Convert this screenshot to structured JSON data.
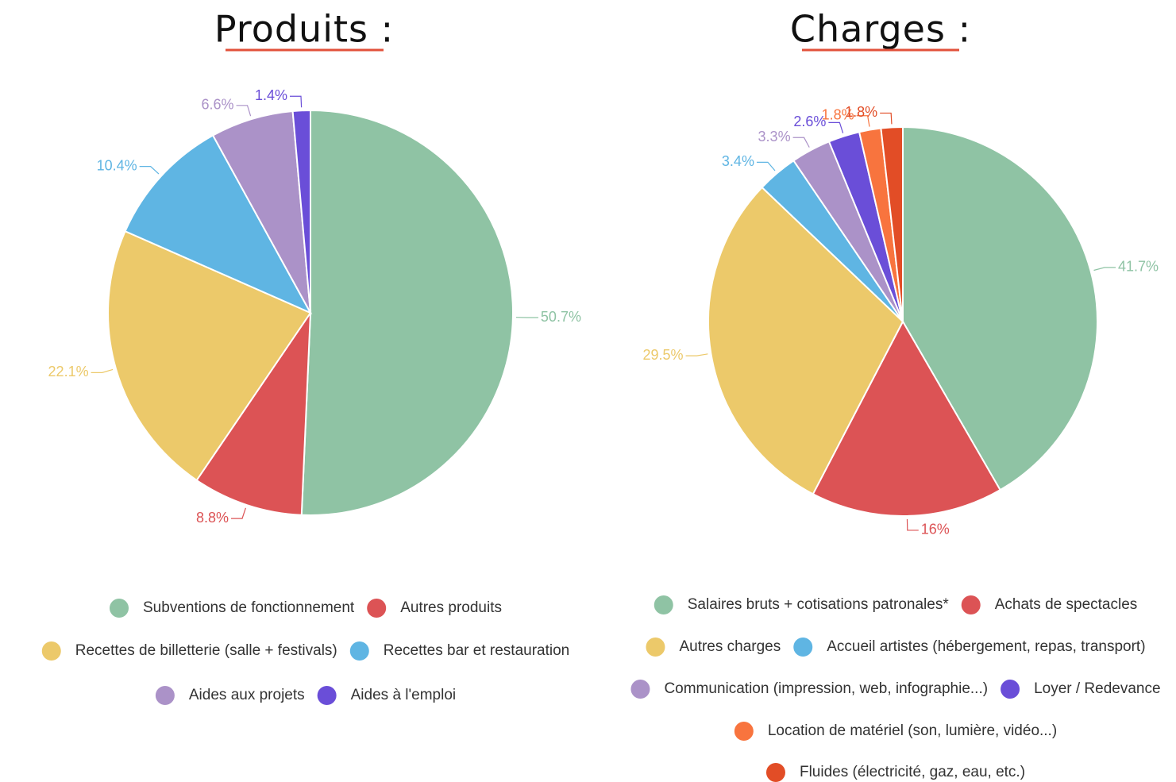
{
  "chart_data": [
    {
      "type": "pie",
      "title": "Produits :",
      "categories": [
        "Subventions de fonctionnement",
        "Autres produits",
        "Recettes de billetterie (salle + festivals)",
        "Recettes bar et restauration",
        "Aides aux projets",
        "Aides à l'emploi"
      ],
      "values": [
        50.7,
        8.8,
        22.1,
        10.4,
        6.6,
        1.4
      ],
      "value_labels": [
        "50.7%",
        "8.8%",
        "22.1%",
        "10.4%",
        "6.6%",
        "1.4%"
      ],
      "colors": [
        "#8fc3a4",
        "#dc5355",
        "#ecc96a",
        "#5fb5e3",
        "#ab92c8",
        "#6a4ed8"
      ]
    },
    {
      "type": "pie",
      "title": "Charges :",
      "categories": [
        "Salaires bruts + cotisations patronales*",
        "Achats de spectacles",
        "Autres charges",
        "Accueil artistes (hébergement, repas, transport)",
        "Communication (impression, web, infographie...)",
        "Loyer / Redevance",
        "Location de matériel (son, lumière, vidéo...)",
        "Fluides (électricité, gaz, eau, etc.)"
      ],
      "values": [
        41.7,
        16,
        29.5,
        3.4,
        3.3,
        2.6,
        1.8,
        1.8
      ],
      "value_labels": [
        "41.7%",
        "16%",
        "29.5%",
        "3.4%",
        "3.3%",
        "2.6%",
        "1.8%",
        "1.8%"
      ],
      "colors": [
        "#8fc3a4",
        "#dc5355",
        "#ecc96a",
        "#5fb5e3",
        "#ab92c8",
        "#6a4ed8",
        "#f8743e",
        "#e24d26"
      ]
    }
  ]
}
